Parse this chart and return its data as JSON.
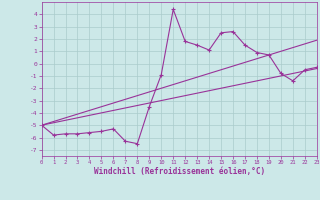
{
  "xlabel": "Windchill (Refroidissement éolien,°C)",
  "background_color": "#cce8e8",
  "grid_color": "#aacccc",
  "line_color": "#993399",
  "x_data": [
    0,
    1,
    2,
    3,
    4,
    5,
    6,
    7,
    8,
    9,
    10,
    11,
    12,
    13,
    14,
    15,
    16,
    17,
    18,
    19,
    20,
    21,
    22,
    23
  ],
  "y_jagged": [
    -5,
    -5.8,
    -5.7,
    -5.7,
    -5.6,
    -5.5,
    -5.3,
    -6.3,
    -6.5,
    -3.5,
    -0.9,
    4.4,
    1.8,
    1.5,
    1.1,
    2.5,
    2.6,
    1.5,
    0.9,
    0.7,
    -0.8,
    -1.4,
    -0.5,
    -0.3
  ],
  "y_line1": [
    -5,
    -4.8,
    -4.6,
    -4.4,
    -4.2,
    -4.0,
    -3.8,
    -3.6,
    -3.4,
    -3.2,
    -3.0,
    -2.8,
    -2.6,
    -2.4,
    -2.2,
    -2.0,
    -1.8,
    -1.6,
    -1.4,
    -1.2,
    -1.0,
    -0.8,
    -0.6,
    -0.4
  ],
  "y_line2": [
    -5,
    -4.7,
    -4.4,
    -4.1,
    -3.8,
    -3.5,
    -3.2,
    -2.9,
    -2.6,
    -2.3,
    -2.0,
    -1.7,
    -1.4,
    -1.1,
    -0.8,
    -0.5,
    -0.2,
    0.1,
    0.4,
    0.7,
    1.0,
    1.3,
    1.6,
    1.9
  ],
  "ylim": [
    -7.5,
    5
  ],
  "xlim": [
    0,
    23
  ],
  "yticks": [
    -7,
    -6,
    -5,
    -4,
    -3,
    -2,
    -1,
    0,
    1,
    2,
    3,
    4
  ],
  "xticks": [
    0,
    1,
    2,
    3,
    4,
    5,
    6,
    7,
    8,
    9,
    10,
    11,
    12,
    13,
    14,
    15,
    16,
    17,
    18,
    19,
    20,
    21,
    22,
    23
  ]
}
